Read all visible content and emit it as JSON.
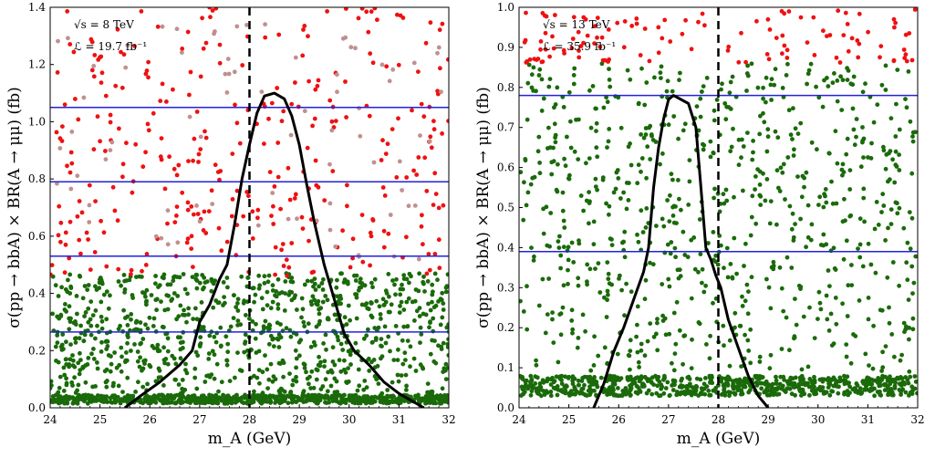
{
  "chart_data": [
    {
      "type": "scatter",
      "panel": "left",
      "title": "",
      "xlabel": "m_A (GeV)",
      "ylabel": "σ(pp → bbA) × BR(A → μμ) (fb)",
      "xlim": [
        24,
        32
      ],
      "ylim": [
        0,
        1.4
      ],
      "xticks": [
        "24",
        "25",
        "26",
        "27",
        "28",
        "29",
        "30",
        "31",
        "32"
      ],
      "yticks": [
        "0.0",
        "0.2",
        "0.4",
        "0.6",
        "0.8",
        "1.0",
        "1.2",
        "1.4"
      ],
      "grid": false,
      "annotations": [
        "√s = 8 TeV",
        "ℒ = 19.7 fb⁻¹"
      ],
      "vline_x": 28.0,
      "hlines_y": [
        1.05,
        0.79,
        0.53,
        0.265
      ],
      "colors": {
        "green": "#1a6a0a",
        "red": "#ee1111",
        "pink": "#c09090",
        "hline": "#2222dd",
        "curve": "#000000"
      },
      "scatter_bands": [
        {
          "color": "green",
          "y_range": [
            0.015,
            0.045
          ],
          "count": 700
        },
        {
          "color": "green",
          "y_range": [
            0.05,
            0.47
          ],
          "count": 900
        },
        {
          "color": "red",
          "y_range": [
            0.46,
            1.4
          ],
          "count": 330
        },
        {
          "color": "pink",
          "y_range": [
            0.5,
            1.35
          ],
          "count": 80
        }
      ],
      "curve": {
        "x": [
          25.5,
          25.8,
          26.2,
          26.6,
          26.85,
          27.0,
          27.2,
          27.4,
          27.55,
          27.7,
          27.85,
          28.0,
          28.15,
          28.3,
          28.5,
          28.7,
          28.85,
          29.0,
          29.15,
          29.3,
          29.5,
          29.7,
          29.9,
          30.1,
          30.4,
          30.7,
          31.0,
          31.3,
          31.5
        ],
        "y": [
          0.0,
          0.04,
          0.09,
          0.15,
          0.2,
          0.3,
          0.36,
          0.45,
          0.5,
          0.64,
          0.8,
          0.92,
          1.03,
          1.09,
          1.1,
          1.08,
          1.02,
          0.92,
          0.78,
          0.65,
          0.5,
          0.38,
          0.26,
          0.2,
          0.15,
          0.09,
          0.05,
          0.02,
          0.0
        ]
      }
    },
    {
      "type": "scatter",
      "panel": "right",
      "title": "",
      "xlabel": "m_A (GeV)",
      "ylabel": "σ(pp → bbA) × BR(A → μμ) (fb)",
      "xlim": [
        24,
        32
      ],
      "ylim": [
        0,
        1.0
      ],
      "xticks": [
        "24",
        "25",
        "26",
        "27",
        "28",
        "29",
        "30",
        "31",
        "32"
      ],
      "yticks": [
        "0.0",
        "0.1",
        "0.2",
        "0.3",
        "0.4",
        "0.5",
        "0.6",
        "0.7",
        "0.8",
        "0.9",
        "1.0"
      ],
      "grid": false,
      "annotations": [
        "√s = 13 TeV",
        "ℒ = 35.9 fb⁻¹"
      ],
      "vline_x": 28.0,
      "hlines_y": [
        0.78,
        0.39
      ],
      "colors": {
        "green": "#1a6a0a",
        "red": "#ee1111",
        "hline": "#2222dd",
        "curve": "#000000"
      },
      "scatter_bands": [
        {
          "color": "green",
          "y_range": [
            0.03,
            0.08
          ],
          "count": 700
        },
        {
          "color": "green",
          "y_range": [
            0.09,
            0.86
          ],
          "count": 800
        },
        {
          "color": "red",
          "y_range": [
            0.86,
            1.0
          ],
          "count": 120
        }
      ],
      "curve": {
        "x": [
          25.5,
          25.7,
          25.9,
          26.1,
          26.3,
          26.5,
          26.6,
          26.7,
          26.8,
          26.9,
          27.0,
          27.1,
          27.25,
          27.4,
          27.55,
          27.65,
          27.75,
          27.85,
          27.95,
          28.05,
          28.2,
          28.4,
          28.6,
          28.8,
          29.0
        ],
        "y": [
          0.0,
          0.06,
          0.14,
          0.2,
          0.27,
          0.34,
          0.4,
          0.55,
          0.65,
          0.72,
          0.77,
          0.78,
          0.77,
          0.76,
          0.7,
          0.55,
          0.4,
          0.37,
          0.33,
          0.3,
          0.22,
          0.15,
          0.08,
          0.03,
          0.0
        ]
      }
    }
  ]
}
